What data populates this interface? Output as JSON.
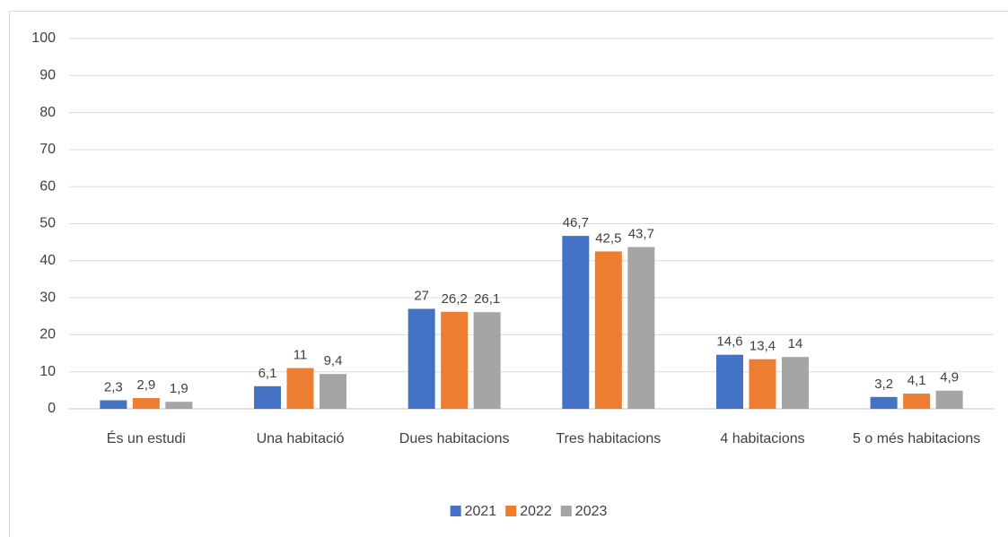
{
  "chart_data": {
    "type": "bar",
    "categories": [
      "És un estudi",
      "Una habitació",
      "Dues habitacions",
      "Tres habitacions",
      "4 habitacions",
      "5 o més habitacions"
    ],
    "series": [
      {
        "name": "2021",
        "color": "#4472c4",
        "values": [
          2.3,
          6.1,
          27,
          46.7,
          14.6,
          3.2
        ],
        "value_labels": [
          "2,3",
          "6,1",
          "27",
          "46,7",
          "14,6",
          "3,2"
        ]
      },
      {
        "name": "2022",
        "color": "#ed7d31",
        "values": [
          2.9,
          11,
          26.2,
          42.5,
          13.4,
          4.1
        ],
        "value_labels": [
          "2,9",
          "11",
          "26,2",
          "42,5",
          "13,4",
          "4,1"
        ]
      },
      {
        "name": "2023",
        "color": "#a5a5a5",
        "values": [
          1.9,
          9.4,
          26.1,
          43.7,
          14,
          4.9
        ],
        "value_labels": [
          "1,9",
          "9,4",
          "26,1",
          "43,7",
          "14",
          "4,9"
        ]
      }
    ],
    "ylim": [
      0,
      100
    ],
    "yticks": [
      0,
      10,
      20,
      30,
      40,
      50,
      60,
      70,
      80,
      90,
      100
    ],
    "grid": true,
    "legend": "bottom"
  }
}
